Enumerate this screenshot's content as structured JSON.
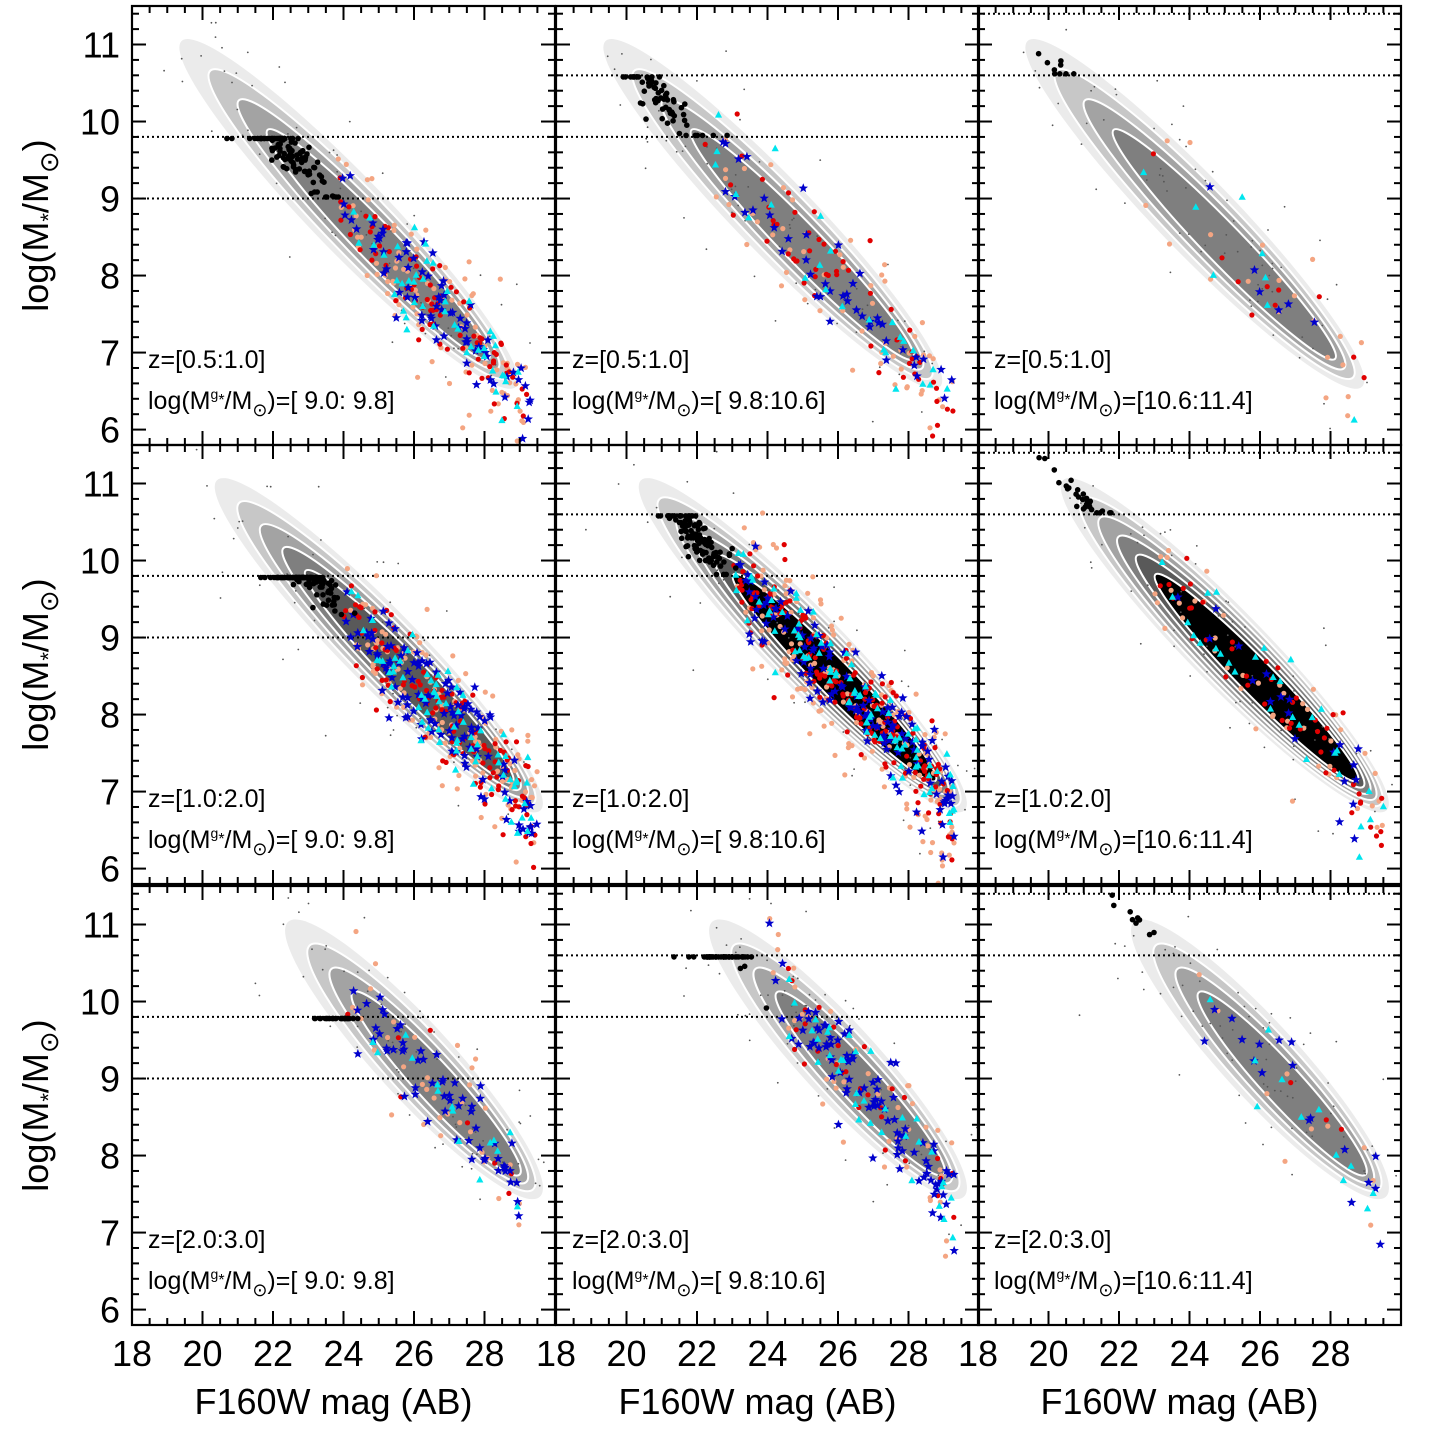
{
  "colors": {
    "contour_fills": [
      "#ebebeb",
      "#c7c7c7",
      "#a3a3a3",
      "#7f7f7f",
      "#595959",
      "#000000"
    ],
    "contour_line": "#ffffff",
    "host": "#000000",
    "satellite_star": "#0000cc",
    "satellite_triangle": "#00e5ee",
    "satellite_red": "#e00000",
    "satellite_salmon": "#f4a582",
    "field_points": "#555555"
  },
  "marker_icons": [
    "filled-circle",
    "five-point-star",
    "triangle",
    "dot"
  ],
  "axes": {
    "xlabel": "F160W mag (AB)",
    "ylabel_main": "log(M",
    "ylabel_star": "*",
    "ylabel_mid": "/M",
    "ylabel_sun": "⊙",
    "ylabel_end": ")",
    "x_ticks": [
      "18",
      "20",
      "22",
      "24",
      "26",
      "28"
    ],
    "y_ticks": [
      "6",
      "7",
      "8",
      "9",
      "10",
      "11"
    ]
  },
  "chart_data": {
    "type": "scatter",
    "layout": "3x3 grid of panels",
    "xlabel": "F160W mag (AB)",
    "ylabel": "log(M*/M⊙)",
    "xlim": [
      18,
      30
    ],
    "ylim": [
      5.8,
      11.5
    ],
    "grid": false,
    "panels": [
      {
        "row": 0,
        "col": 0,
        "z_text": "z=[0.5:1.0]",
        "mass_bin": "[ 9.0: 9.8]",
        "host_lines": [
          9.0,
          9.8
        ],
        "host_center": [
          22.5,
          9.35
        ],
        "host_spread": [
          0.9,
          0.25
        ],
        "host_n": 110,
        "sat_n": {
          "star": 75,
          "triangle": 45,
          "red": 80,
          "salmon": 95
        },
        "sat_range": [
          23.8,
          29.3
        ],
        "contour": {
          "head": [
            19.5,
            11.0
          ],
          "tail": [
            28.8,
            6.6
          ],
          "max_level": 4
        }
      },
      {
        "row": 0,
        "col": 1,
        "z_text": "z=[0.5:1.0]",
        "mass_bin": "[ 9.8:10.6]",
        "host_lines": [
          9.8,
          10.6
        ],
        "host_center": [
          21.0,
          10.15
        ],
        "host_spread": [
          1.0,
          0.25
        ],
        "host_n": 65,
        "sat_n": {
          "star": 45,
          "triangle": 25,
          "red": 55,
          "salmon": 55
        },
        "sat_range": [
          22.0,
          29.3
        ],
        "contour": {
          "head": [
            19.5,
            11.0
          ],
          "tail": [
            28.8,
            6.6
          ],
          "max_level": 4
        }
      },
      {
        "row": 0,
        "col": 2,
        "z_text": "z=[0.5:1.0]",
        "mass_bin": "[10.6:11.4]",
        "host_lines": [
          10.6,
          11.4
        ],
        "host_center": [
          20.3,
          10.95
        ],
        "host_spread": [
          0.4,
          0.12
        ],
        "host_n": 9,
        "sat_n": {
          "star": 6,
          "triangle": 8,
          "red": 10,
          "salmon": 20
        },
        "sat_range": [
          22.5,
          29.0
        ],
        "contour": {
          "head": [
            19.5,
            11.0
          ],
          "tail": [
            28.8,
            6.6
          ],
          "max_level": 4
        }
      },
      {
        "row": 1,
        "col": 0,
        "z_text": "z=[1.0:2.0]",
        "mass_bin": "[ 9.0: 9.8]",
        "host_lines": [
          9.0,
          9.8
        ],
        "host_center": [
          23.0,
          9.4
        ],
        "host_spread": [
          0.8,
          0.22
        ],
        "host_n": 120,
        "sat_n": {
          "star": 120,
          "triangle": 70,
          "red": 120,
          "salmon": 130
        },
        "sat_range": [
          24.0,
          29.5
        ],
        "contour": {
          "head": [
            20.5,
            11.0
          ],
          "tail": [
            29.5,
            6.8
          ],
          "max_level": 5
        }
      },
      {
        "row": 1,
        "col": 1,
        "z_text": "z=[1.0:2.0]",
        "mass_bin": "[ 9.8:10.6]",
        "host_lines": [
          9.8,
          10.6
        ],
        "host_center": [
          22.0,
          10.25
        ],
        "host_spread": [
          0.75,
          0.22
        ],
        "host_n": 110,
        "sat_n": {
          "star": 130,
          "triangle": 90,
          "red": 170,
          "salmon": 180
        },
        "sat_range": [
          23.0,
          29.3
        ],
        "contour": {
          "head": [
            20.5,
            11.0
          ],
          "tail": [
            29.5,
            6.8
          ],
          "max_level": 6
        }
      },
      {
        "row": 1,
        "col": 2,
        "z_text": "z=[1.0:2.0]",
        "mass_bin": "[10.6:11.4]",
        "host_lines": [
          10.6,
          11.4
        ],
        "host_center": [
          21.0,
          10.9
        ],
        "host_spread": [
          1.0,
          0.12
        ],
        "host_n": 28,
        "sat_n": {
          "star": 20,
          "triangle": 30,
          "red": 45,
          "salmon": 45
        },
        "sat_range": [
          23.0,
          29.5
        ],
        "contour": {
          "head": [
            20.5,
            11.0
          ],
          "tail": [
            29.5,
            6.8
          ],
          "max_level": 6
        }
      },
      {
        "row": 2,
        "col": 0,
        "z_text": "z=[2.0:3.0]",
        "mass_bin": "[ 9.0: 9.8]",
        "host_lines": [
          9.0,
          9.8
        ],
        "host_center": [
          23.8,
          9.55
        ],
        "host_spread": [
          0.5,
          0.2
        ],
        "host_n": 30,
        "sat_n": {
          "star": 60,
          "triangle": 15,
          "red": 8,
          "salmon": 35
        },
        "sat_range": [
          24.0,
          29.0
        ],
        "contour": {
          "head": [
            22.5,
            11.0
          ],
          "tail": [
            29.5,
            7.5
          ],
          "max_level": 4
        }
      },
      {
        "row": 2,
        "col": 1,
        "z_text": "z=[2.0:3.0]",
        "mass_bin": "[ 9.8:10.6]",
        "host_lines": [
          9.8,
          10.6
        ],
        "host_center": [
          22.7,
          10.15
        ],
        "host_spread": [
          0.8,
          0.3
        ],
        "host_n": 42,
        "sat_n": {
          "star": 90,
          "triangle": 35,
          "red": 30,
          "salmon": 45
        },
        "sat_range": [
          24.0,
          29.3
        ],
        "contour": {
          "head": [
            22.5,
            11.0
          ],
          "tail": [
            29.5,
            7.5
          ],
          "max_level": 4
        }
      },
      {
        "row": 2,
        "col": 2,
        "z_text": "z=[2.0:3.0]",
        "mass_bin": "[10.6:11.4]",
        "host_lines": [
          10.6,
          11.4
        ],
        "host_center": [
          22.5,
          10.85
        ],
        "host_spread": [
          0.6,
          0.12
        ],
        "host_n": 9,
        "sat_n": {
          "star": 18,
          "triangle": 12,
          "red": 3,
          "salmon": 10
        },
        "sat_range": [
          24.0,
          29.5
        ],
        "contour": {
          "head": [
            22.5,
            11.0
          ],
          "tail": [
            29.5,
            7.5
          ],
          "max_level": 4
        }
      }
    ]
  }
}
